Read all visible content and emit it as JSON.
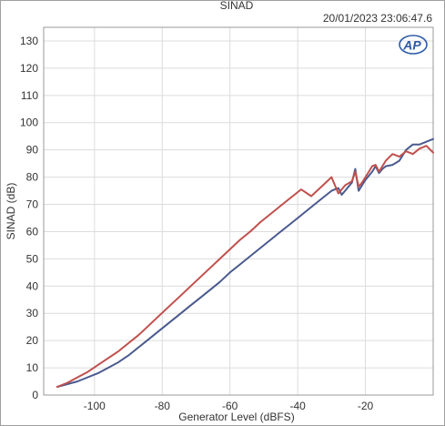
{
  "chart_data": {
    "type": "line",
    "title": "SINAD",
    "timestamp": "20/01/2023 23:06:47.6",
    "logo": "AP",
    "xlabel": "Generator Level (dBFS)",
    "ylabel": "SINAD (dB)",
    "xlim": [
      -115,
      0
    ],
    "ylim": [
      0,
      135
    ],
    "xticks": [
      -100,
      -80,
      -60,
      -40,
      -20
    ],
    "yticks": [
      0,
      10,
      20,
      30,
      40,
      50,
      60,
      70,
      80,
      90,
      100,
      110,
      120,
      130
    ],
    "grid": true,
    "legend": "none",
    "series": [
      {
        "color": "#4a5a8e",
        "x": [
          -111,
          -108,
          -105,
          -102,
          -99,
          -96,
          -93,
          -90,
          -87,
          -84,
          -81,
          -78,
          -75,
          -72,
          -69,
          -66,
          -63,
          -60,
          -57,
          -54,
          -51,
          -48,
          -45,
          -42,
          -39,
          -36,
          -33,
          -30,
          -28,
          -27,
          -26,
          -24,
          -23,
          -22,
          -21,
          -20,
          -18,
          -17,
          -16,
          -15,
          -14,
          -12,
          -10,
          -8,
          -6,
          -4,
          -2,
          0
        ],
        "y": [
          3,
          4,
          5,
          6.5,
          8,
          10,
          12,
          14.5,
          17.5,
          20.5,
          23.5,
          26.5,
          29.5,
          32.5,
          35.5,
          38.5,
          41.5,
          45,
          48,
          51,
          54,
          57,
          60,
          63,
          66,
          69,
          72,
          75,
          76,
          73.5,
          75,
          78,
          83,
          75,
          77,
          79,
          82,
          84,
          81.5,
          83,
          84,
          84.5,
          86,
          90,
          92,
          92,
          93,
          94
        ]
      },
      {
        "color": "#c0504d",
        "x": [
          -111,
          -108,
          -105,
          -102,
          -99,
          -96,
          -93,
          -90,
          -87,
          -84,
          -81,
          -78,
          -75,
          -72,
          -69,
          -66,
          -63,
          -60,
          -57,
          -54,
          -51,
          -48,
          -45,
          -42,
          -39,
          -36,
          -33,
          -30,
          -28,
          -27,
          -26,
          -24,
          -23,
          -22,
          -21,
          -20,
          -18,
          -17,
          -16,
          -15,
          -14,
          -12,
          -10,
          -8,
          -6,
          -4,
          -2,
          0
        ],
        "y": [
          3,
          4.5,
          6.5,
          8.5,
          11,
          13.5,
          16,
          19,
          22,
          25.5,
          29,
          32.5,
          36,
          39.5,
          43,
          46.5,
          50,
          53.5,
          57,
          60,
          63.5,
          66.5,
          69.5,
          72.5,
          75.5,
          73,
          76.5,
          80,
          74,
          75.5,
          77,
          78.5,
          82,
          76.5,
          78,
          80,
          84,
          84.5,
          82,
          84,
          86,
          88.5,
          87.5,
          89.5,
          88.5,
          90.5,
          91.5,
          89
        ]
      }
    ]
  }
}
